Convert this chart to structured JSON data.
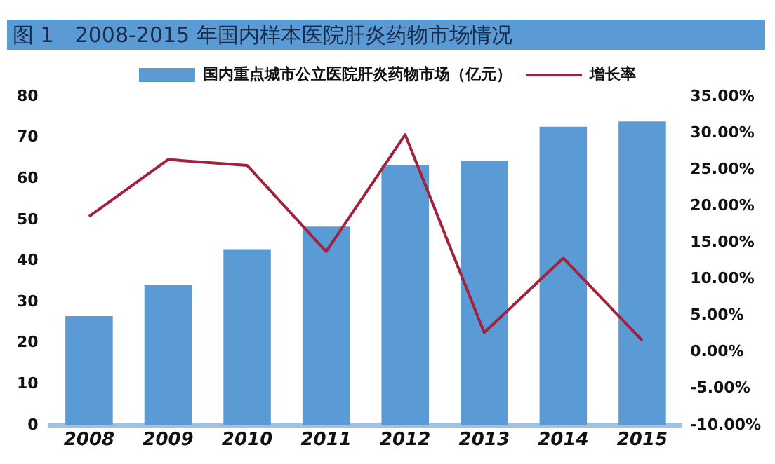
{
  "chart_data": {
    "type": "bar",
    "title": "图 1　2008-2015 年国内样本医院肝炎药物市场情况",
    "categories": [
      "2008",
      "2009",
      "2010",
      "2011",
      "2012",
      "2013",
      "2014",
      "2015"
    ],
    "series": [
      {
        "name": "国内重点城市公立医院肝炎药物市场（亿元）",
        "color": "#5b9bd5",
        "values": [
          26.6,
          34.1,
          42.9,
          48.4,
          63.3,
          64.4,
          72.7,
          74
        ]
      },
      {
        "name": "增长率",
        "type": "line",
        "axis": "y2",
        "color": "#a3213c",
        "values": [
          18.6,
          26.4,
          25.6,
          13.8,
          29.8,
          2.7,
          12.9,
          1.6
        ]
      }
    ],
    "ylim": [
      0,
      80
    ],
    "yticks": [
      0,
      10,
      20,
      30,
      40,
      50,
      60,
      70,
      80
    ],
    "y2lim": [
      -10,
      35
    ],
    "y2ticks": [
      {
        "value": -10,
        "label": "-10.00%"
      },
      {
        "value": -5,
        "label": "-5.00%"
      },
      {
        "value": 0,
        "label": "0.00%"
      },
      {
        "value": 5,
        "label": "5.00%"
      },
      {
        "value": 10,
        "label": "10.00%"
      },
      {
        "value": 15,
        "label": "15.00%"
      },
      {
        "value": 20,
        "label": "20.00%"
      },
      {
        "value": 25,
        "label": "25.00%"
      },
      {
        "value": 30,
        "label": "30.00%"
      },
      {
        "value": 35,
        "label": "35.00%"
      }
    ],
    "grid": false,
    "legend": "top",
    "marker": "none",
    "line_style": "solid"
  }
}
